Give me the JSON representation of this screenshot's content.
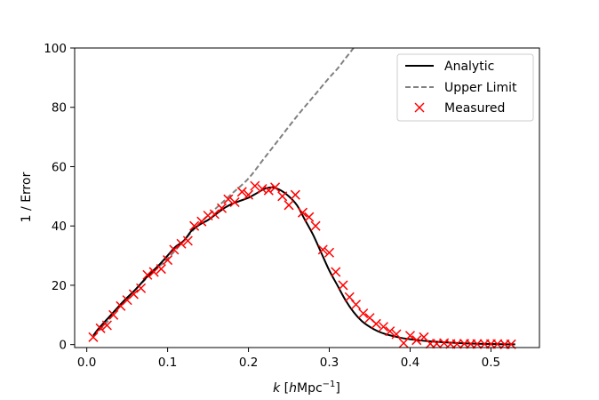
{
  "chart_data": {
    "type": "line",
    "xlabel_var": "k",
    "xlabel_unit_open": " [",
    "xlabel_unit_h": "h",
    "xlabel_unit_mpc": "Mpc",
    "xlabel_unit_exp": "−1",
    "xlabel_unit_close": "]",
    "ylabel": "1 / Error",
    "xlim": [
      -0.015,
      0.56
    ],
    "ylim": [
      -1,
      100
    ],
    "xticks": [
      0.0,
      0.1,
      0.2,
      0.3,
      0.4,
      0.5
    ],
    "xtick_labels": [
      "0.0",
      "0.1",
      "0.2",
      "0.3",
      "0.4",
      "0.5"
    ],
    "yticks": [
      0,
      20,
      40,
      60,
      80,
      100
    ],
    "ytick_labels": [
      "0",
      "20",
      "40",
      "60",
      "80",
      "100"
    ],
    "legend_position": "top-right",
    "series": [
      {
        "name": "Analytic",
        "style": "solid-line",
        "color": "#000000",
        "x": [
          0.008,
          0.015,
          0.03,
          0.045,
          0.06,
          0.075,
          0.09,
          0.1,
          0.11,
          0.12,
          0.13,
          0.14,
          0.15,
          0.16,
          0.17,
          0.18,
          0.19,
          0.2,
          0.21,
          0.22,
          0.23,
          0.24,
          0.25,
          0.26,
          0.27,
          0.28,
          0.29,
          0.3,
          0.31,
          0.32,
          0.33,
          0.34,
          0.35,
          0.36,
          0.37,
          0.38,
          0.39,
          0.4,
          0.42,
          0.44,
          0.46,
          0.48,
          0.5,
          0.52,
          0.53
        ],
        "y": [
          3,
          5.5,
          10,
          14.5,
          18.5,
          23,
          27,
          30,
          33,
          35,
          38.5,
          40.5,
          42,
          44,
          46,
          47.5,
          48.5,
          49.5,
          51,
          52.5,
          53,
          52,
          50,
          47,
          42,
          37,
          31,
          25,
          20,
          15,
          11,
          8,
          6,
          4.5,
          3.5,
          2.8,
          2.2,
          1.8,
          1.2,
          0.8,
          0.5,
          0.3,
          0.2,
          0.1,
          0.1
        ]
      },
      {
        "name": "Upper Limit",
        "style": "dashed-line",
        "color": "#808080",
        "x": [
          0.008,
          0.02,
          0.04,
          0.06,
          0.08,
          0.1,
          0.12,
          0.14,
          0.16,
          0.18,
          0.2,
          0.22,
          0.24,
          0.26,
          0.28,
          0.3,
          0.31,
          0.32,
          0.33
        ],
        "y": [
          3,
          6,
          12.5,
          18.5,
          24,
          29,
          35,
          41,
          46,
          51,
          56,
          63,
          70,
          77,
          83.5,
          90,
          93,
          96.5,
          100
        ]
      },
      {
        "name": "Measured",
        "style": "x-markers",
        "color": "#ff0000",
        "x": [
          0.008,
          0.017,
          0.025,
          0.033,
          0.042,
          0.05,
          0.058,
          0.067,
          0.075,
          0.083,
          0.092,
          0.1,
          0.108,
          0.117,
          0.125,
          0.133,
          0.142,
          0.15,
          0.158,
          0.167,
          0.175,
          0.183,
          0.192,
          0.2,
          0.208,
          0.217,
          0.225,
          0.233,
          0.242,
          0.25,
          0.258,
          0.267,
          0.275,
          0.283,
          0.292,
          0.3,
          0.308,
          0.317,
          0.325,
          0.333,
          0.342,
          0.35,
          0.358,
          0.367,
          0.375,
          0.383,
          0.392,
          0.4,
          0.408,
          0.417,
          0.425,
          0.433,
          0.442,
          0.45,
          0.458,
          0.467,
          0.475,
          0.483,
          0.492,
          0.5,
          0.508,
          0.517,
          0.525
        ],
        "y": [
          2.5,
          5.5,
          6.5,
          10,
          13,
          15,
          17,
          19,
          23.5,
          24.5,
          25.5,
          28.5,
          32,
          34,
          35,
          40,
          41.5,
          43.5,
          44,
          46,
          49,
          48,
          51.5,
          50.5,
          53.5,
          52.5,
          52,
          53,
          50,
          47,
          50.5,
          44.5,
          43,
          40,
          32,
          31,
          24.5,
          20,
          16,
          13.5,
          10.5,
          9,
          7,
          6,
          4.5,
          3.5,
          0.5,
          3,
          1.5,
          2.5,
          0.3,
          0.3,
          0.5,
          0.2,
          0.2,
          0.3,
          0.2,
          0.2,
          0.2,
          0.2,
          0.2,
          0.1,
          0.1
        ]
      }
    ]
  }
}
